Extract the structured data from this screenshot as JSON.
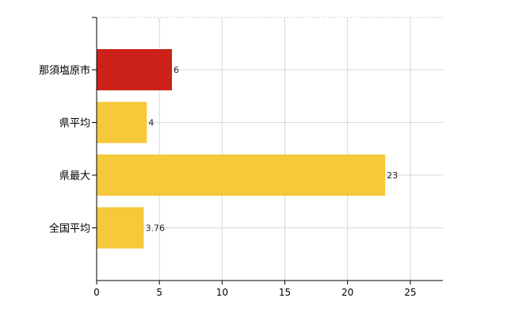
{
  "chart_data": {
    "type": "bar",
    "orientation": "horizontal",
    "categories": [
      "那須塩原市",
      "県平均",
      "県最大",
      "全国平均"
    ],
    "values": [
      6,
      4,
      23,
      3.76
    ],
    "data_labels": [
      "6",
      "4",
      "23",
      "3.76"
    ],
    "bar_colors": [
      "#cc2219",
      "#f5c93a",
      "#f5c93a",
      "#f5c93a"
    ],
    "x_ticks": [
      0,
      5,
      10,
      15,
      20,
      25
    ],
    "xlim": [
      0,
      27.6
    ],
    "grid": true,
    "title": "",
    "xlabel": "",
    "ylabel": ""
  }
}
